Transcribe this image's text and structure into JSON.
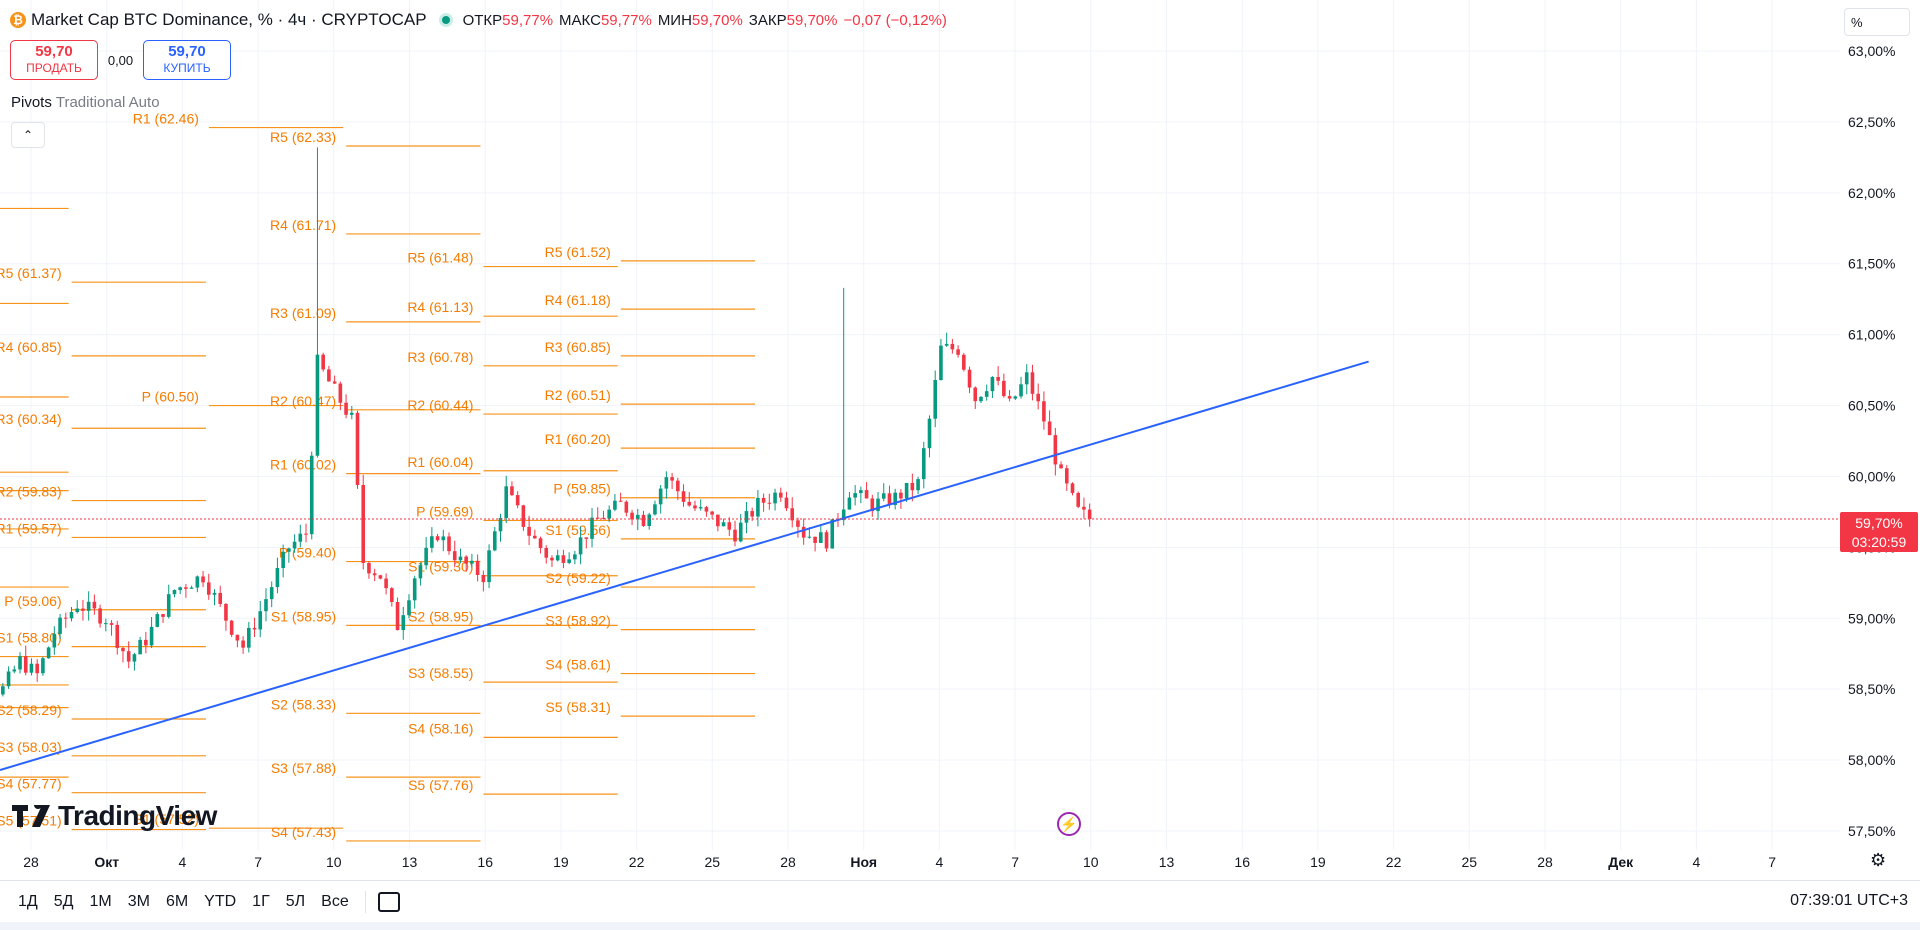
{
  "header": {
    "symbol_icon": "btc-icon",
    "title": "Market Cap BTC Dominance, % · 4ч · CRYPTOCAP",
    "ohlc": [
      {
        "label": "ОТКР",
        "value": "59,77%"
      },
      {
        "label": "МАКС",
        "value": "59,77%"
      },
      {
        "label": "МИН",
        "value": "59,70%"
      },
      {
        "label": "ЗАКР",
        "value": "59,70%"
      }
    ],
    "change": "−0,07 (−0,12%)"
  },
  "trade": {
    "sell_price": "59,70",
    "sell_label": "ПРОДАТЬ",
    "spread": "0,00",
    "buy_price": "59,70",
    "buy_label": "КУПИТЬ"
  },
  "indicator": {
    "name": "Pivots",
    "params": "Traditional Auto",
    "collapse_icon": "chevron-up-icon"
  },
  "price_axis": {
    "unit": "%",
    "labels": [
      "63,00%",
      "62,50%",
      "62,00%",
      "61,50%",
      "61,00%",
      "60,50%",
      "60,00%",
      "59,50%",
      "59,00%",
      "58,50%",
      "58,00%",
      "57,50%"
    ],
    "current_price": "59,70%",
    "countdown": "03:20:59"
  },
  "time_axis": {
    "labels": [
      "28",
      "Окт",
      "4",
      "7",
      "10",
      "13",
      "16",
      "19",
      "22",
      "25",
      "28",
      "Ноя",
      "4",
      "7",
      "10",
      "13",
      "16",
      "19",
      "22",
      "25",
      "28",
      "Дек",
      "4",
      "7"
    ],
    "bold": [
      "Окт",
      "Ноя",
      "Дек"
    ]
  },
  "branding": {
    "logo_text": "TradingView"
  },
  "bottom_bar": {
    "ranges": [
      "1Д",
      "5Д",
      "1М",
      "3М",
      "6М",
      "YTD",
      "1Г",
      "5Л",
      "Все"
    ],
    "clock": "07:39:01 UTC+3"
  },
  "colors": {
    "up": "#089981",
    "down": "#f23645",
    "pivot": "#f7931a",
    "pivot_text": "#f57c00",
    "trend": "#2962ff"
  },
  "chart_data": {
    "type": "candlestick",
    "title": "Market Cap BTC Dominance, % · 4ч · CRYPTOCAP",
    "ylim": [
      57.45,
      63.05
    ],
    "y_ticks": [
      57.5,
      58.0,
      58.5,
      59.0,
      59.5,
      60.0,
      60.5,
      61.0,
      61.5,
      62.0,
      62.5,
      63.0
    ],
    "grid": true,
    "last_price": 59.7,
    "candle_anchors": [
      [
        -10,
        58.5
      ],
      [
        0,
        58.5
      ],
      [
        3,
        58.7
      ],
      [
        6,
        58.6
      ],
      [
        9,
        58.9
      ],
      [
        13,
        59.1
      ],
      [
        18,
        59.0
      ],
      [
        22,
        58.7
      ],
      [
        25,
        58.85
      ],
      [
        30,
        59.2
      ],
      [
        35,
        59.3
      ],
      [
        39,
        59.0
      ],
      [
        42,
        58.8
      ],
      [
        45,
        59.05
      ],
      [
        50,
        59.5
      ],
      [
        53,
        59.6
      ],
      [
        55,
        60.8
      ],
      [
        58,
        60.6
      ],
      [
        61,
        60.4
      ],
      [
        63,
        59.4
      ],
      [
        66,
        59.3
      ],
      [
        69,
        58.95
      ],
      [
        72,
        59.3
      ],
      [
        76,
        59.6
      ],
      [
        80,
        59.4
      ],
      [
        84,
        59.3
      ],
      [
        88,
        59.9
      ],
      [
        92,
        59.6
      ],
      [
        96,
        59.4
      ],
      [
        100,
        59.5
      ],
      [
        104,
        59.7
      ],
      [
        108,
        59.8
      ],
      [
        112,
        59.7
      ],
      [
        116,
        60.0
      ],
      [
        120,
        59.8
      ],
      [
        124,
        59.7
      ],
      [
        128,
        59.6
      ],
      [
        132,
        59.8
      ],
      [
        136,
        59.9
      ],
      [
        140,
        59.6
      ],
      [
        144,
        59.55
      ],
      [
        148,
        59.9
      ],
      [
        152,
        59.8
      ],
      [
        156,
        59.85
      ],
      [
        160,
        59.95
      ],
      [
        162,
        60.4
      ],
      [
        164,
        60.9
      ],
      [
        167,
        60.9
      ],
      [
        170,
        60.55
      ],
      [
        173,
        60.7
      ],
      [
        176,
        60.5
      ],
      [
        179,
        60.7
      ],
      [
        182,
        60.4
      ],
      [
        185,
        60.0
      ],
      [
        188,
        59.75
      ],
      [
        190,
        59.7
      ]
    ],
    "trend_line": [
      [
        0,
        57.93
      ],
      [
        180,
        60.81
      ]
    ],
    "pivot_sets": [
      {
        "x": [
          -12,
          12
        ],
        "label_x": -4,
        "levels": [
          [
            "",
            61.89
          ],
          [
            "",
            61.22
          ],
          [
            "",
            60.56
          ],
          [
            "",
            60.03
          ],
          [
            "",
            59.9
          ],
          [
            "",
            59.63
          ],
          [
            "",
            59.22
          ],
          [
            "",
            58.73
          ],
          [
            "",
            58.53
          ],
          [
            "",
            58.37
          ],
          [
            "",
            57.88
          ]
        ]
      },
      {
        "x": [
          12,
          36
        ],
        "label_x": 10,
        "levels": [
          [
            "R5",
            61.37
          ],
          [
            "R4",
            60.85
          ],
          [
            "R3",
            60.34
          ],
          [
            "R2",
            59.83
          ],
          [
            "R1",
            59.57
          ],
          [
            "P",
            59.06
          ],
          [
            "S1",
            58.8
          ],
          [
            "S2",
            58.29
          ],
          [
            "S3",
            58.03
          ],
          [
            "S4",
            57.77
          ],
          [
            "S5",
            57.51
          ]
        ]
      },
      {
        "x": [
          36,
          60
        ],
        "label_x": 34,
        "levels": [
          [
            "R1",
            62.46
          ],
          [
            "P",
            60.5
          ],
          [
            "S1",
            57.52
          ]
        ]
      },
      {
        "x": [
          60,
          84
        ],
        "label_x": 58,
        "levels": [
          [
            "R5",
            62.33
          ],
          [
            "R4",
            61.71
          ],
          [
            "R3",
            61.09
          ],
          [
            "R2",
            60.47
          ],
          [
            "R1",
            60.02
          ],
          [
            "P",
            59.4
          ],
          [
            "S1",
            58.95
          ],
          [
            "S2",
            58.33
          ],
          [
            "S3",
            57.88
          ],
          [
            "S4",
            57.43
          ]
        ]
      },
      {
        "x": [
          84,
          108
        ],
        "label_x": 82,
        "levels": [
          [
            "R5",
            61.48
          ],
          [
            "R4",
            61.13
          ],
          [
            "R3",
            60.78
          ],
          [
            "R2",
            60.44
          ],
          [
            "R1",
            60.04
          ],
          [
            "P",
            59.69
          ],
          [
            "S1",
            59.3
          ],
          [
            "S2",
            58.95
          ],
          [
            "S3",
            58.55
          ],
          [
            "S4",
            58.16
          ],
          [
            "S5",
            57.76
          ]
        ]
      },
      {
        "x": [
          108,
          132
        ],
        "label_x": 106,
        "levels": [
          [
            "R5",
            61.52
          ],
          [
            "R4",
            61.18
          ],
          [
            "R3",
            60.85
          ],
          [
            "R2",
            60.51
          ],
          [
            "R1",
            60.2
          ],
          [
            "P",
            59.85
          ],
          [
            "S1",
            59.56
          ],
          [
            "S2",
            59.22
          ],
          [
            "S3",
            58.92
          ],
          [
            "S4",
            58.61
          ],
          [
            "S5",
            58.31
          ]
        ]
      }
    ]
  }
}
